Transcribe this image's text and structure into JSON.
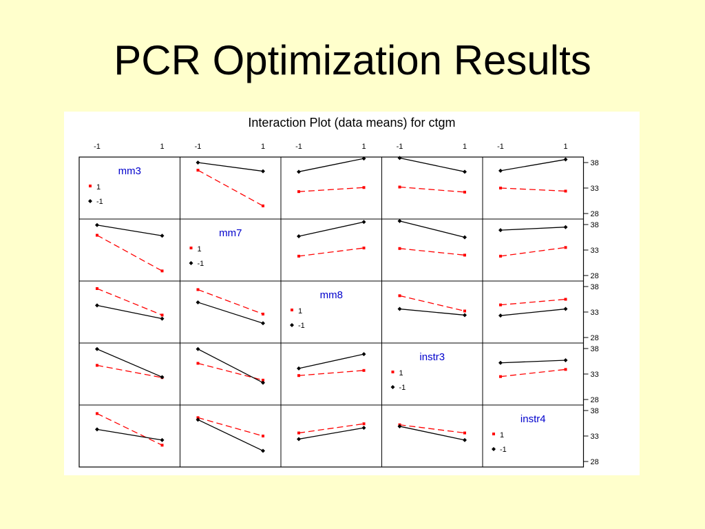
{
  "slide": {
    "title": "PCR Optimization Results"
  },
  "colors": {
    "background": "#ffffcc",
    "level_pos": "#ff0000",
    "level_neg": "#000000",
    "factor_label": "#0000cc"
  },
  "chart_data": {
    "type": "line",
    "title": "Interaction Plot (data means) for ctgm",
    "factors": [
      "mm3",
      "mm7",
      "mm8",
      "instr3",
      "instr4"
    ],
    "x_levels": [
      -1,
      1
    ],
    "x_tick_labels": [
      "-1",
      "1"
    ],
    "ylim": [
      28,
      38
    ],
    "y_ticks": [
      28,
      33,
      38
    ],
    "legend_levels": [
      "1",
      "-1"
    ],
    "cells": [
      {
        "row": 0,
        "col": 1,
        "series": [
          {
            "name": "1",
            "values": [
              36.5,
              29.5
            ]
          },
          {
            "name": "-1",
            "values": [
              38.0,
              36.3
            ]
          }
        ]
      },
      {
        "row": 0,
        "col": 2,
        "series": [
          {
            "name": "1",
            "values": [
              32.3,
              33.1
            ]
          },
          {
            "name": "-1",
            "values": [
              36.2,
              38.8
            ]
          }
        ]
      },
      {
        "row": 0,
        "col": 3,
        "series": [
          {
            "name": "1",
            "values": [
              33.2,
              32.2
            ]
          },
          {
            "name": "-1",
            "values": [
              38.9,
              36.2
            ]
          }
        ]
      },
      {
        "row": 0,
        "col": 4,
        "series": [
          {
            "name": "1",
            "values": [
              33.0,
              32.4
            ]
          },
          {
            "name": "-1",
            "values": [
              36.4,
              38.6
            ]
          }
        ]
      },
      {
        "row": 1,
        "col": 0,
        "series": [
          {
            "name": "1",
            "values": [
              35.9,
              28.9
            ]
          },
          {
            "name": "-1",
            "values": [
              37.9,
              35.8
            ]
          }
        ]
      },
      {
        "row": 1,
        "col": 2,
        "series": [
          {
            "name": "1",
            "values": [
              31.8,
              33.4
            ]
          },
          {
            "name": "-1",
            "values": [
              35.7,
              38.5
            ]
          }
        ]
      },
      {
        "row": 1,
        "col": 3,
        "series": [
          {
            "name": "1",
            "values": [
              33.3,
              32.0
            ]
          },
          {
            "name": "-1",
            "values": [
              38.7,
              35.5
            ]
          }
        ]
      },
      {
        "row": 1,
        "col": 4,
        "series": [
          {
            "name": "1",
            "values": [
              31.8,
              33.5
            ]
          },
          {
            "name": "-1",
            "values": [
              36.9,
              37.5
            ]
          }
        ]
      },
      {
        "row": 2,
        "col": 0,
        "series": [
          {
            "name": "1",
            "values": [
              37.6,
              32.4
            ]
          },
          {
            "name": "-1",
            "values": [
              34.3,
              31.7
            ]
          }
        ]
      },
      {
        "row": 2,
        "col": 1,
        "series": [
          {
            "name": "1",
            "values": [
              37.4,
              32.6
            ]
          },
          {
            "name": "-1",
            "values": [
              34.9,
              30.8
            ]
          }
        ]
      },
      {
        "row": 2,
        "col": 3,
        "series": [
          {
            "name": "1",
            "values": [
              36.2,
              33.2
            ]
          },
          {
            "name": "-1",
            "values": [
              33.6,
              32.4
            ]
          }
        ]
      },
      {
        "row": 2,
        "col": 4,
        "series": [
          {
            "name": "1",
            "values": [
              34.4,
              35.5
            ]
          },
          {
            "name": "-1",
            "values": [
              32.3,
              33.6
            ]
          }
        ]
      },
      {
        "row": 3,
        "col": 0,
        "series": [
          {
            "name": "1",
            "values": [
              34.7,
              32.3
            ]
          },
          {
            "name": "-1",
            "values": [
              37.9,
              32.4
            ]
          }
        ]
      },
      {
        "row": 3,
        "col": 1,
        "series": [
          {
            "name": "1",
            "values": [
              35.1,
              31.8
            ]
          },
          {
            "name": "-1",
            "values": [
              37.9,
              31.3
            ]
          }
        ]
      },
      {
        "row": 3,
        "col": 2,
        "series": [
          {
            "name": "1",
            "values": [
              32.7,
              33.7
            ]
          },
          {
            "name": "-1",
            "values": [
              34.1,
              36.9
            ]
          }
        ]
      },
      {
        "row": 3,
        "col": 4,
        "series": [
          {
            "name": "1",
            "values": [
              32.5,
              33.9
            ]
          },
          {
            "name": "-1",
            "values": [
              35.2,
              35.7
            ]
          }
        ]
      },
      {
        "row": 4,
        "col": 0,
        "series": [
          {
            "name": "1",
            "values": [
              37.4,
              31.2
            ]
          },
          {
            "name": "-1",
            "values": [
              34.3,
              32.2
            ]
          }
        ]
      },
      {
        "row": 4,
        "col": 1,
        "series": [
          {
            "name": "1",
            "values": [
              36.6,
              33.0
            ]
          },
          {
            "name": "-1",
            "values": [
              36.2,
              30.1
            ]
          }
        ]
      },
      {
        "row": 4,
        "col": 2,
        "series": [
          {
            "name": "1",
            "values": [
              33.6,
              35.4
            ]
          },
          {
            "name": "-1",
            "values": [
              32.4,
              34.6
            ]
          }
        ]
      },
      {
        "row": 4,
        "col": 3,
        "series": [
          {
            "name": "1",
            "values": [
              35.2,
              33.6
            ]
          },
          {
            "name": "-1",
            "values": [
              34.9,
              32.2
            ]
          }
        ]
      }
    ]
  }
}
